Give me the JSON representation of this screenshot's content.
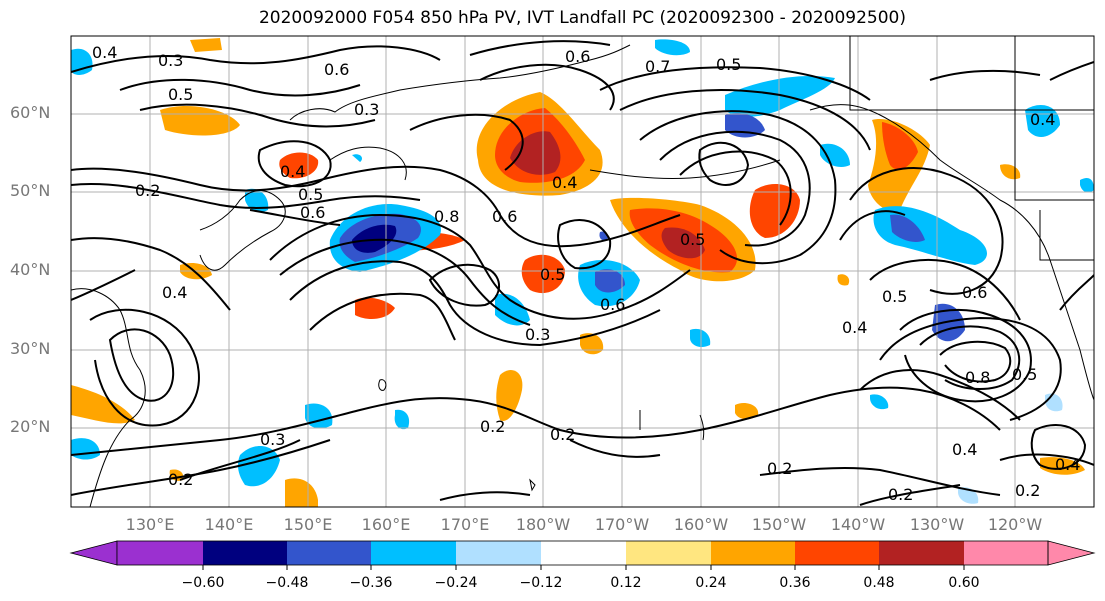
{
  "title": "2020092000 F054 850 hPa PV, IVT Landfall PC (2020092300 - 2020092500)",
  "lat_labels": [
    "60°N",
    "50°N",
    "40°N",
    "30°N",
    "20°N"
  ],
  "lon_labels": [
    "130°E",
    "140°E",
    "150°E",
    "160°E",
    "170°E",
    "180°W",
    "170°W",
    "160°W",
    "150°W",
    "140°W",
    "130°W",
    "120°W"
  ],
  "colorbar": {
    "ticks": [
      "−0.60",
      "−0.48",
      "−0.36",
      "−0.24",
      "−0.12",
      "0.12",
      "0.24",
      "0.36",
      "0.48",
      "0.60"
    ],
    "colors": [
      "#9b30d0",
      "#00007f",
      "#3355cc",
      "#00bfff",
      "#b0e0ff",
      "#ffffff",
      "#ffe680",
      "#ffa500",
      "#ff4500",
      "#b22222",
      "#ff88aa"
    ]
  },
  "contour_labels": [
    "0.4",
    "0.3",
    "0.6",
    "0.3",
    "0.5",
    "0.4",
    "0.5",
    "0.6",
    "0.8",
    "0.6",
    "0.4",
    "0.5",
    "0.6",
    "0.5",
    "0.7",
    "0.5",
    "0.6",
    "0.3",
    "0.2",
    "0.4",
    "0.2",
    "0.3",
    "0.2",
    "0.2",
    "0.2",
    "0.2",
    "0.4",
    "0.5",
    "0.6",
    "0.8",
    "0.5",
    "0.4",
    "0.4",
    "0.2",
    "0.4"
  ],
  "colors": {
    "contour": "#000000",
    "grid": "#b0b0b0",
    "coast": "#000000",
    "axis_text": "#777777"
  }
}
